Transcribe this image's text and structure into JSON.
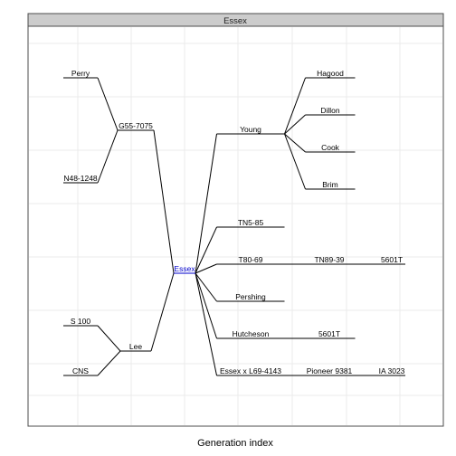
{
  "panel": {
    "strip_title": "Essex",
    "x_axis_title": "Generation index"
  },
  "style": {
    "panel_background": "#ffffff",
    "panel_border": "#4d4d4d",
    "strip_fill": "#cccccc",
    "grid_color": "#ebebeb",
    "edge_color": "#000000",
    "focal_color": "#0000cc"
  },
  "pedigree": {
    "focal": "Essex",
    "nodes": {
      "perry": "Perry",
      "g55": "G55-7075",
      "n48": "N48-1248",
      "s100": "S 100",
      "lee": "Lee",
      "cns": "CNS",
      "essex": "Essex",
      "young": "Young",
      "hagood": "Hagood",
      "dillon": "Dillon",
      "cook": "Cook",
      "brim": "Brim",
      "tn585": "TN5-85",
      "t8069": "T80-69",
      "tn8939": "TN89-39",
      "p5601t_a": "5601T",
      "pershing": "Pershing",
      "hutcheson": "Hutcheson",
      "p5601t_b": "5601T",
      "essexl69": "Essex x L69-4143",
      "pioneer": "Pioneer 9381",
      "ia3023": "IA 3023"
    },
    "edges": [
      [
        "perry",
        "g55"
      ],
      [
        "n48",
        "g55"
      ],
      [
        "s100",
        "lee"
      ],
      [
        "cns",
        "lee"
      ],
      [
        "g55",
        "essex"
      ],
      [
        "lee",
        "essex"
      ],
      [
        "essex",
        "young"
      ],
      [
        "essex",
        "tn585"
      ],
      [
        "essex",
        "t8069"
      ],
      [
        "essex",
        "pershing"
      ],
      [
        "essex",
        "hutcheson"
      ],
      [
        "essex",
        "essexl69"
      ],
      [
        "young",
        "hagood"
      ],
      [
        "young",
        "dillon"
      ],
      [
        "young",
        "cook"
      ],
      [
        "young",
        "brim"
      ],
      [
        "t8069",
        "tn8939"
      ],
      [
        "tn8939",
        "p5601t_a"
      ],
      [
        "hutcheson",
        "p5601t_b"
      ],
      [
        "essexl69",
        "pioneer"
      ],
      [
        "pioneer",
        "ia3023"
      ]
    ]
  }
}
